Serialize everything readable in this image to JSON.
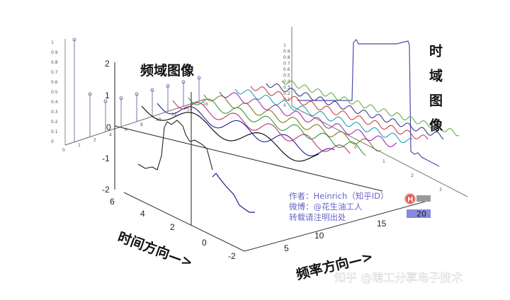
{
  "chart_data": {
    "type": "line",
    "title_frequency_domain": "频域图像",
    "title_time_domain": "时域图像",
    "xlabel": "频率方向—>",
    "ylabel": "时间方向—>",
    "z_ticks": [
      "2",
      "1",
      "0",
      "-1",
      "-2"
    ],
    "time_ticks": [
      "6",
      "4",
      "2",
      "0",
      "-2"
    ],
    "freq_ticks": [
      "5",
      "10",
      "15",
      "20"
    ],
    "spectrum_ticks_y": [
      "1",
      "0.9",
      "0.8",
      "0.7",
      "0.6",
      "0.5",
      "0.4",
      "0.3",
      "0.2",
      "0.1",
      "0"
    ],
    "spectrum_ticks_x": [
      "0",
      "1",
      "2",
      "4",
      "6",
      "8",
      "10",
      "12",
      "14",
      "16"
    ],
    "spectrum_amplitudes": [
      1.0,
      0.42,
      0.3,
      0.28,
      0.27,
      0.26,
      0.25,
      0.24,
      0.23
    ],
    "harmonic_colors": [
      "#000000",
      "#1a1aa0",
      "#c0306a",
      "#2a9a40",
      "#7a7a20",
      "#a030b0",
      "#20a0b0",
      "#d04040",
      "#3a3a8a",
      "#60b040"
    ],
    "time_domain_ticks_y": [
      "1",
      "0.9",
      "0.8",
      "0.7",
      "0.6",
      "0.5",
      "0.4",
      "0.3",
      "0.2",
      "0.1",
      "0"
    ],
    "time_domain_ticks_x": [
      "0",
      "1",
      "2",
      "3"
    ]
  },
  "credit": {
    "author": "作者：Heinrich（知乎ID）",
    "weibo": "微博：@花生油工人",
    "note": "转载请注明出处",
    "badge_letter": "H",
    "badge_value": "20"
  },
  "watermark": "知乎 @萌工分享电子技术"
}
